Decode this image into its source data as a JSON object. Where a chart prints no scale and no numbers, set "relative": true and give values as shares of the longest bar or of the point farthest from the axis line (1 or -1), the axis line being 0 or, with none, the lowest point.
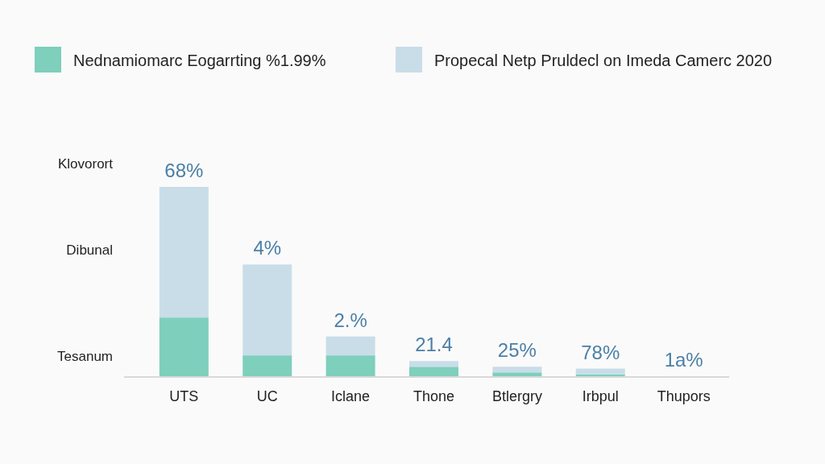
{
  "chart_data": {
    "type": "bar",
    "stacked": true,
    "relative": true,
    "legend": "top",
    "categories": [
      "UTS",
      "UC",
      "Iclane",
      "Thone",
      "Btlergry",
      "Irbpul",
      "Thupors"
    ],
    "series": [
      {
        "name": "Nednamiomarc Eogarrting %1.99%",
        "color": "#7ecfbc",
        "values": [
          0.31,
          0.11,
          0.11,
          0.05,
          0.02,
          0.01,
          0
        ]
      },
      {
        "name": "Propecal Netp Pruldecl on Imeda Camerc 2020",
        "color": "#c9dde9",
        "values": [
          0.69,
          0.48,
          0.1,
          0.03,
          0.03,
          0.03,
          0
        ]
      }
    ],
    "annotations": [
      "Klovorort",
      "Dibunal",
      "Tesanum",
      {
        "text": "68%",
        "x": "UTS",
        "y": 1.0
      },
      {
        "text": "4%",
        "x": "UC",
        "y": 0.59
      },
      {
        "text": "2.%",
        "x": "Iclane",
        "y": 0.21
      },
      {
        "text": "21.4",
        "x": "Thone",
        "y": 0.08
      },
      {
        "text": "25%",
        "x": "Btlergry",
        "y": 0.05
      },
      {
        "text": "78%",
        "x": "Irbpul",
        "y": 0.04
      },
      {
        "text": "1a%",
        "x": "Thupors",
        "y": 0
      }
    ]
  }
}
